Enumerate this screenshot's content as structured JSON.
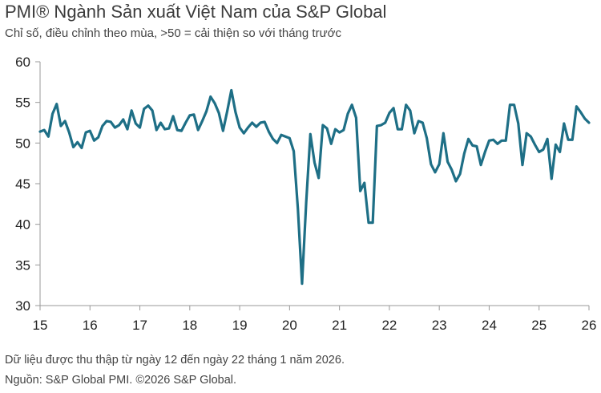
{
  "header": {
    "title": "PMI® Ngành Sản xuất Việt Nam của S&P Global",
    "subtitle": "Chỉ số, điều chỉnh theo mùa, >50 = cải thiện so với tháng trước"
  },
  "footer": {
    "note": "Dữ liệu được thu thập từ ngày 12 đến ngày 22 tháng 1 năm 2026.",
    "source": "Nguồn: S&P Global PMI. ©2026 S&P Global."
  },
  "colors": {
    "line": "#1e6f86",
    "axis": "#999999",
    "text": "#222222"
  },
  "chart_data": {
    "type": "line",
    "title": "PMI® Ngành Sản xuất Việt Nam của S&P Global",
    "ylim": [
      30,
      60
    ],
    "xlim": [
      "2015-01",
      "2026-01"
    ],
    "grid": false,
    "legend": "none",
    "yticks": [
      "30",
      "35",
      "40",
      "45",
      "50",
      "55",
      "60"
    ],
    "xticks": [
      "15",
      "16",
      "17",
      "18",
      "19",
      "20",
      "21",
      "22",
      "23",
      "24",
      "25",
      "26"
    ],
    "series": [
      {
        "points": [
          [
            "2015-01",
            51.4
          ],
          [
            "2015-02",
            51.6
          ],
          [
            "2015-03",
            50.8
          ],
          [
            "2015-04",
            53.6
          ],
          [
            "2015-05",
            54.8
          ],
          [
            "2015-06",
            52.1
          ],
          [
            "2015-07",
            52.7
          ],
          [
            "2015-08",
            51.3
          ],
          [
            "2015-09",
            49.5
          ],
          [
            "2015-10",
            50.1
          ],
          [
            "2015-11",
            49.4
          ],
          [
            "2015-12",
            51.3
          ],
          [
            "2016-01",
            51.5
          ],
          [
            "2016-02",
            50.3
          ],
          [
            "2016-03",
            50.7
          ],
          [
            "2016-04",
            52.1
          ],
          [
            "2016-05",
            52.7
          ],
          [
            "2016-06",
            52.6
          ],
          [
            "2016-07",
            51.9
          ],
          [
            "2016-08",
            52.2
          ],
          [
            "2016-09",
            52.9
          ],
          [
            "2016-10",
            51.7
          ],
          [
            "2016-11",
            54.0
          ],
          [
            "2016-12",
            52.4
          ],
          [
            "2017-01",
            51.9
          ],
          [
            "2017-02",
            54.2
          ],
          [
            "2017-03",
            54.6
          ],
          [
            "2017-04",
            54.0
          ],
          [
            "2017-05",
            51.6
          ],
          [
            "2017-06",
            52.5
          ],
          [
            "2017-07",
            51.7
          ],
          [
            "2017-08",
            51.8
          ],
          [
            "2017-09",
            53.3
          ],
          [
            "2017-10",
            51.6
          ],
          [
            "2017-11",
            51.5
          ],
          [
            "2017-12",
            52.5
          ],
          [
            "2018-01",
            53.4
          ],
          [
            "2018-02",
            53.5
          ],
          [
            "2018-03",
            51.6
          ],
          [
            "2018-04",
            52.7
          ],
          [
            "2018-05",
            53.9
          ],
          [
            "2018-06",
            55.7
          ],
          [
            "2018-07",
            54.9
          ],
          [
            "2018-08",
            53.7
          ],
          [
            "2018-09",
            51.5
          ],
          [
            "2018-10",
            53.9
          ],
          [
            "2018-11",
            56.5
          ],
          [
            "2018-12",
            53.8
          ],
          [
            "2019-01",
            51.9
          ],
          [
            "2019-02",
            51.2
          ],
          [
            "2019-03",
            51.9
          ],
          [
            "2019-04",
            52.5
          ],
          [
            "2019-05",
            52.0
          ],
          [
            "2019-06",
            52.5
          ],
          [
            "2019-07",
            52.6
          ],
          [
            "2019-08",
            51.4
          ],
          [
            "2019-09",
            50.5
          ],
          [
            "2019-10",
            50.0
          ],
          [
            "2019-11",
            51.0
          ],
          [
            "2019-12",
            50.8
          ],
          [
            "2020-01",
            50.6
          ],
          [
            "2020-02",
            49.0
          ],
          [
            "2020-03",
            41.9
          ],
          [
            "2020-04",
            32.7
          ],
          [
            "2020-05",
            42.7
          ],
          [
            "2020-06",
            51.1
          ],
          [
            "2020-07",
            47.6
          ],
          [
            "2020-08",
            45.7
          ],
          [
            "2020-09",
            52.2
          ],
          [
            "2020-10",
            51.8
          ],
          [
            "2020-11",
            49.9
          ],
          [
            "2020-12",
            51.7
          ],
          [
            "2021-01",
            51.3
          ],
          [
            "2021-02",
            51.6
          ],
          [
            "2021-03",
            53.6
          ],
          [
            "2021-04",
            54.7
          ],
          [
            "2021-05",
            53.1
          ],
          [
            "2021-06",
            44.1
          ],
          [
            "2021-07",
            45.1
          ],
          [
            "2021-08",
            40.2
          ],
          [
            "2021-09",
            40.2
          ],
          [
            "2021-10",
            52.1
          ],
          [
            "2021-11",
            52.2
          ],
          [
            "2021-12",
            52.5
          ],
          [
            "2022-01",
            53.7
          ],
          [
            "2022-02",
            54.3
          ],
          [
            "2022-03",
            51.7
          ],
          [
            "2022-04",
            51.7
          ],
          [
            "2022-05",
            54.7
          ],
          [
            "2022-06",
            54.0
          ],
          [
            "2022-07",
            51.2
          ],
          [
            "2022-08",
            52.7
          ],
          [
            "2022-09",
            52.5
          ],
          [
            "2022-10",
            50.6
          ],
          [
            "2022-11",
            47.4
          ],
          [
            "2022-12",
            46.4
          ],
          [
            "2023-01",
            47.4
          ],
          [
            "2023-02",
            51.2
          ],
          [
            "2023-03",
            47.7
          ],
          [
            "2023-04",
            46.7
          ],
          [
            "2023-05",
            45.3
          ],
          [
            "2023-06",
            46.2
          ],
          [
            "2023-07",
            48.7
          ],
          [
            "2023-08",
            50.5
          ],
          [
            "2023-09",
            49.7
          ],
          [
            "2023-10",
            49.6
          ],
          [
            "2023-11",
            47.3
          ],
          [
            "2023-12",
            48.9
          ],
          [
            "2024-01",
            50.3
          ],
          [
            "2024-02",
            50.4
          ],
          [
            "2024-03",
            49.9
          ],
          [
            "2024-04",
            50.3
          ],
          [
            "2024-05",
            50.3
          ],
          [
            "2024-06",
            54.7
          ],
          [
            "2024-07",
            54.7
          ],
          [
            "2024-08",
            52.4
          ],
          [
            "2024-09",
            47.3
          ],
          [
            "2024-10",
            51.2
          ],
          [
            "2024-11",
            50.8
          ],
          [
            "2024-12",
            49.8
          ],
          [
            "2025-01",
            48.9
          ],
          [
            "2025-02",
            49.2
          ],
          [
            "2025-03",
            50.5
          ],
          [
            "2025-04",
            45.6
          ],
          [
            "2025-05",
            49.8
          ],
          [
            "2025-06",
            48.9
          ],
          [
            "2025-07",
            52.4
          ],
          [
            "2025-08",
            50.4
          ],
          [
            "2025-09",
            50.4
          ],
          [
            "2025-10",
            54.5
          ],
          [
            "2025-11",
            53.8
          ],
          [
            "2025-12",
            53.0
          ],
          [
            "2026-01",
            52.5
          ]
        ]
      }
    ]
  }
}
